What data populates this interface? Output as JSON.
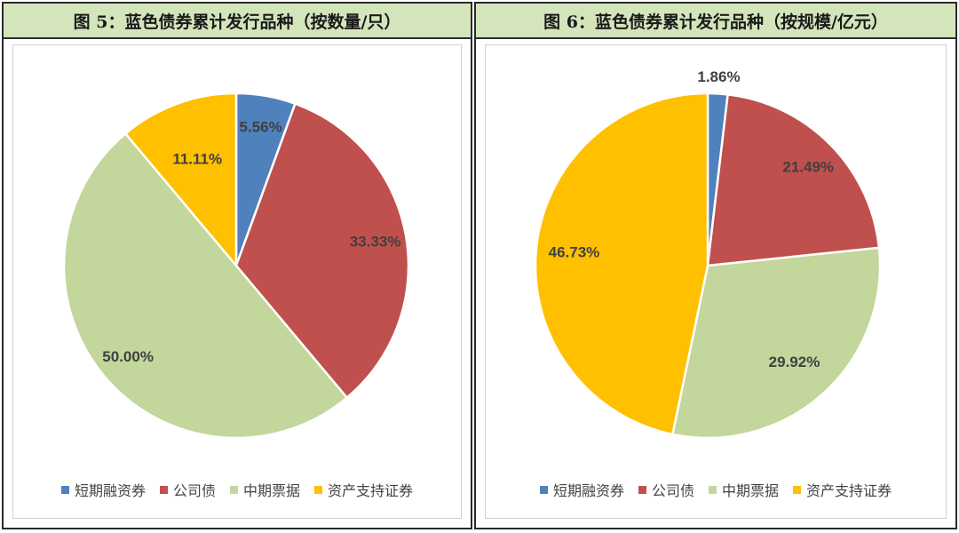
{
  "chart_data": [
    {
      "type": "pie",
      "title": "图 5：蓝色债券累计发行品种（按数量/只）",
      "categories": [
        "短期融资券",
        "公司债",
        "中期票据",
        "资产支持证券"
      ],
      "values": [
        5.56,
        33.33,
        50.0,
        11.11
      ],
      "labels": [
        "5.56%",
        "33.33%",
        "50.00%",
        "11.11%"
      ],
      "colors": [
        "#4f81bd",
        "#c0504d",
        "#c3d69b",
        "#ffc000"
      ],
      "legend": "bottom"
    },
    {
      "type": "pie",
      "title": "图 6：蓝色债券累计发行品种（按规模/亿元）",
      "categories": [
        "短期融资券",
        "公司债",
        "中期票据",
        "资产支持证券"
      ],
      "values": [
        1.86,
        21.49,
        29.92,
        46.73
      ],
      "labels": [
        "1.86%",
        "21.49%",
        "29.92%",
        "46.73%"
      ],
      "colors": [
        "#4f81bd",
        "#c0504d",
        "#c3d69b",
        "#ffc000"
      ],
      "legend": "bottom"
    }
  ]
}
